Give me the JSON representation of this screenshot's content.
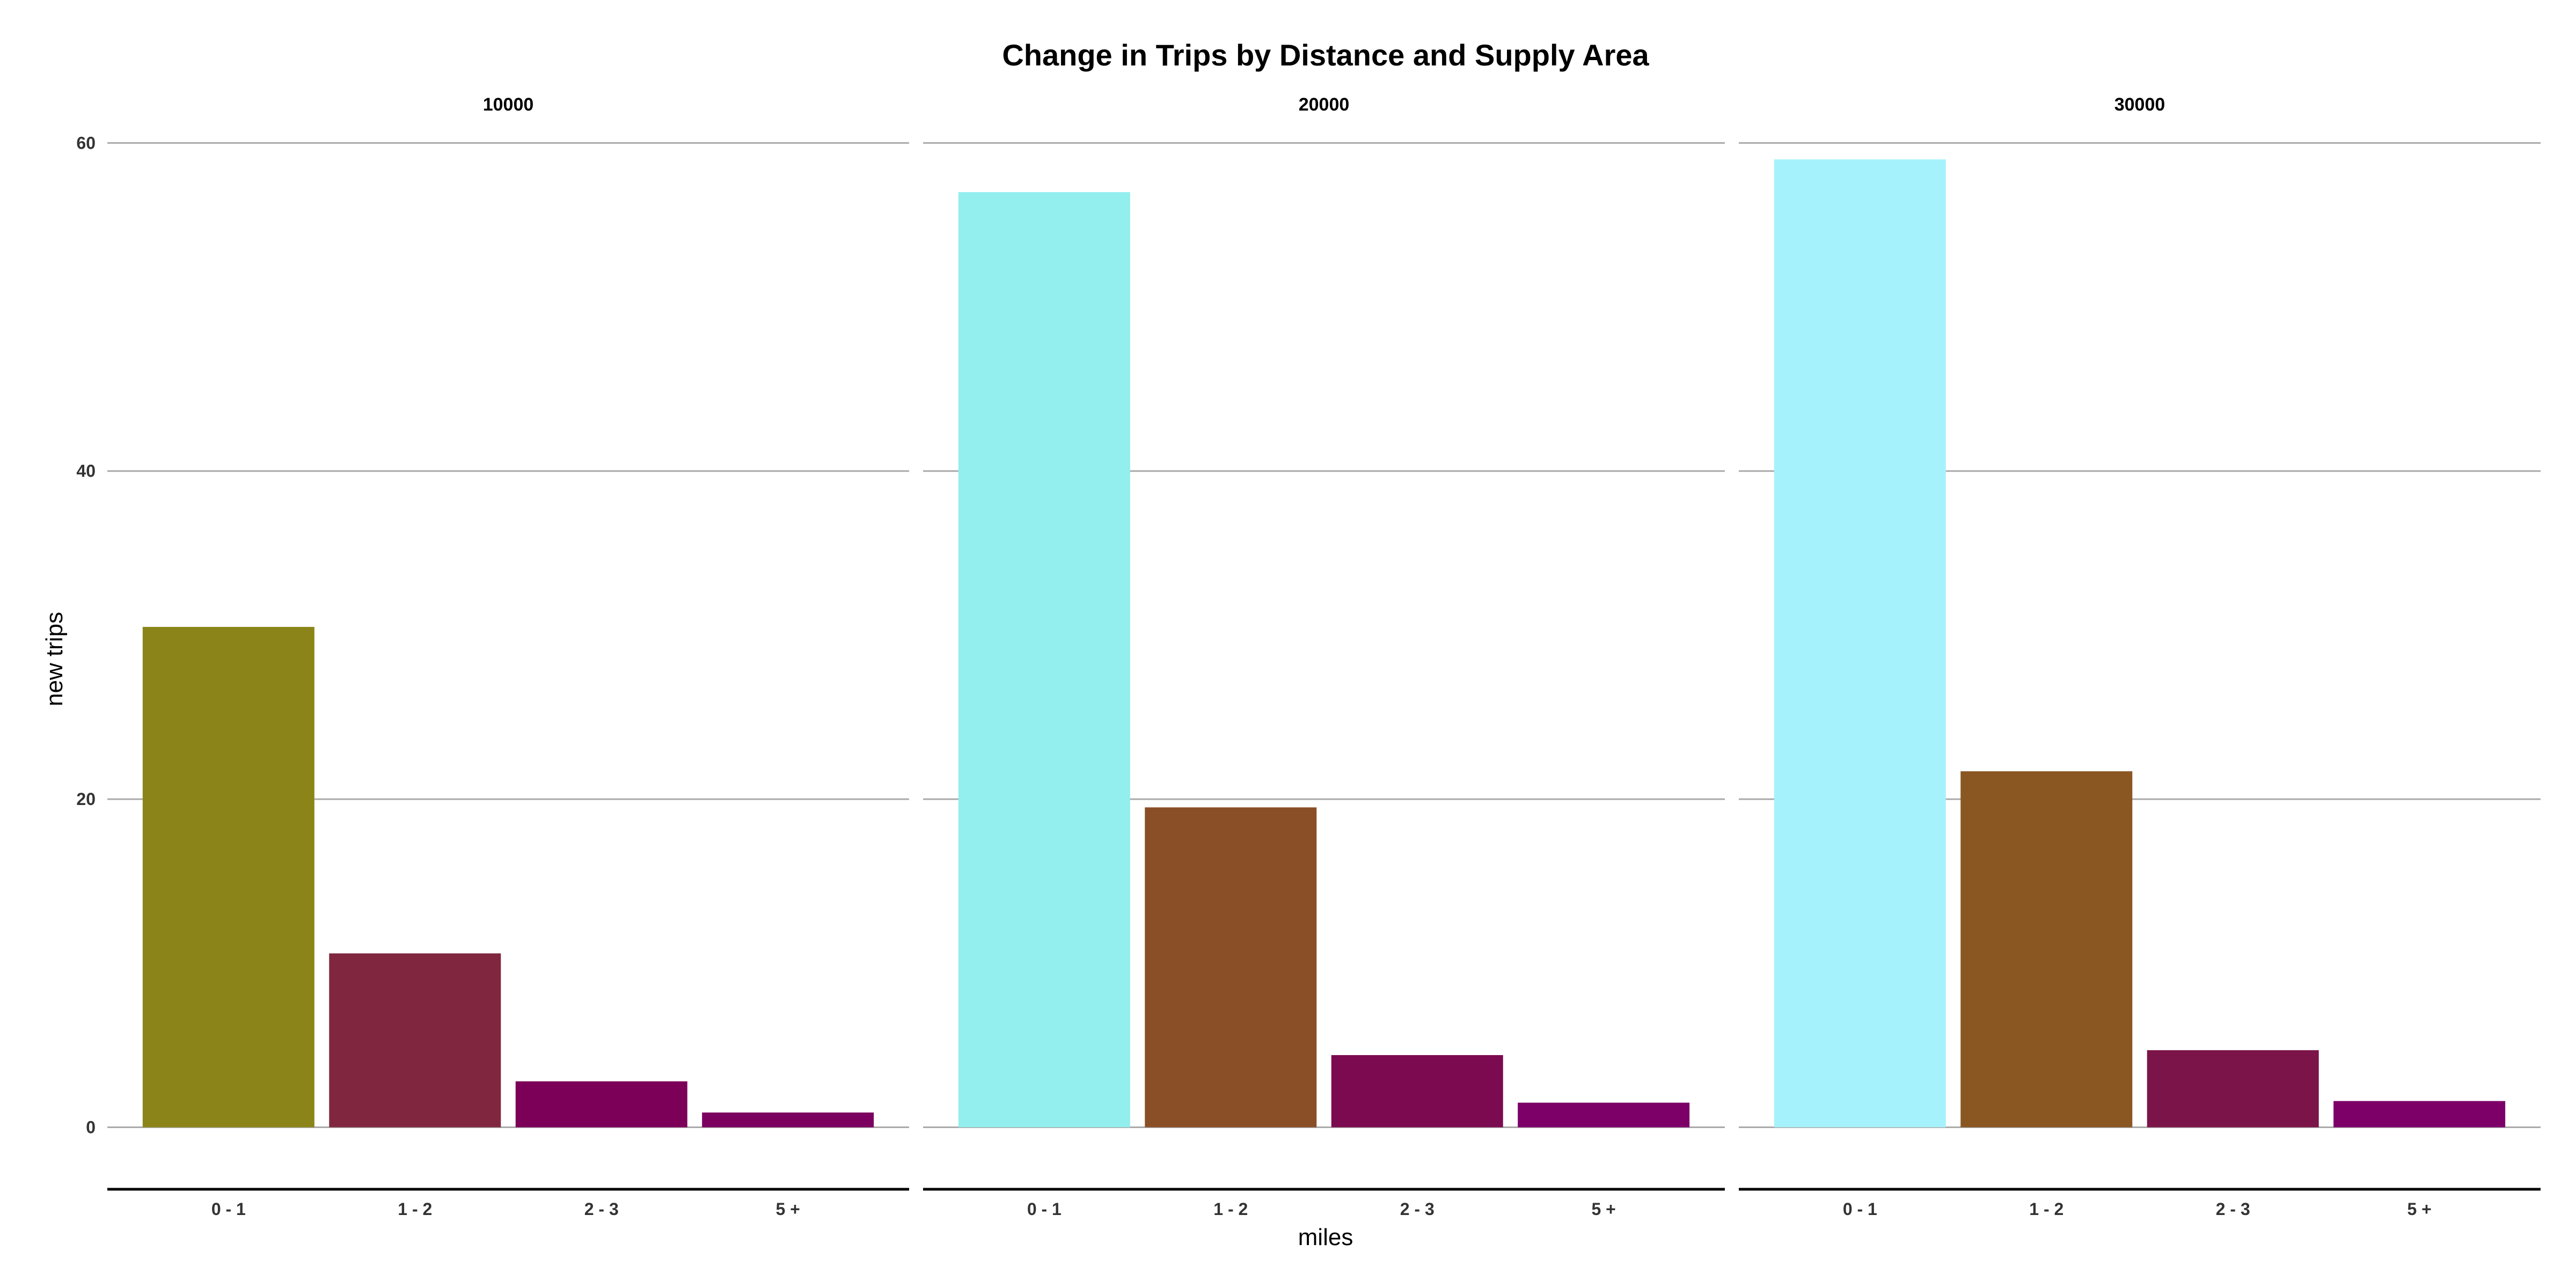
{
  "chart_data": {
    "type": "bar",
    "title": "Change in Trips by Distance and Supply Area",
    "xlabel": "miles",
    "ylabel": "new trips",
    "ylim": [
      -2.6,
      60.6
    ],
    "y_ticks": [
      0,
      20,
      40,
      60
    ],
    "categories": [
      "0 - 1",
      "1 - 2",
      "2 - 3",
      "5 +"
    ],
    "grid": "horizontal-major",
    "legend": "none",
    "facets": [
      {
        "label": "10000",
        "values": [
          30.5,
          10.6,
          2.8,
          0.9
        ],
        "colors": [
          "#8B8519",
          "#80273F",
          "#7C0058",
          "#7B0060"
        ]
      },
      {
        "label": "20000",
        "values": [
          57.0,
          19.5,
          4.4,
          1.5
        ],
        "colors": [
          "#93EEEE",
          "#8A4F27",
          "#7C0A50",
          "#7C0068"
        ]
      },
      {
        "label": "30000",
        "values": [
          59.0,
          21.7,
          4.7,
          1.6
        ],
        "colors": [
          "#A6F2FC",
          "#8A5622",
          "#7B1448",
          "#7C0068"
        ]
      }
    ]
  }
}
